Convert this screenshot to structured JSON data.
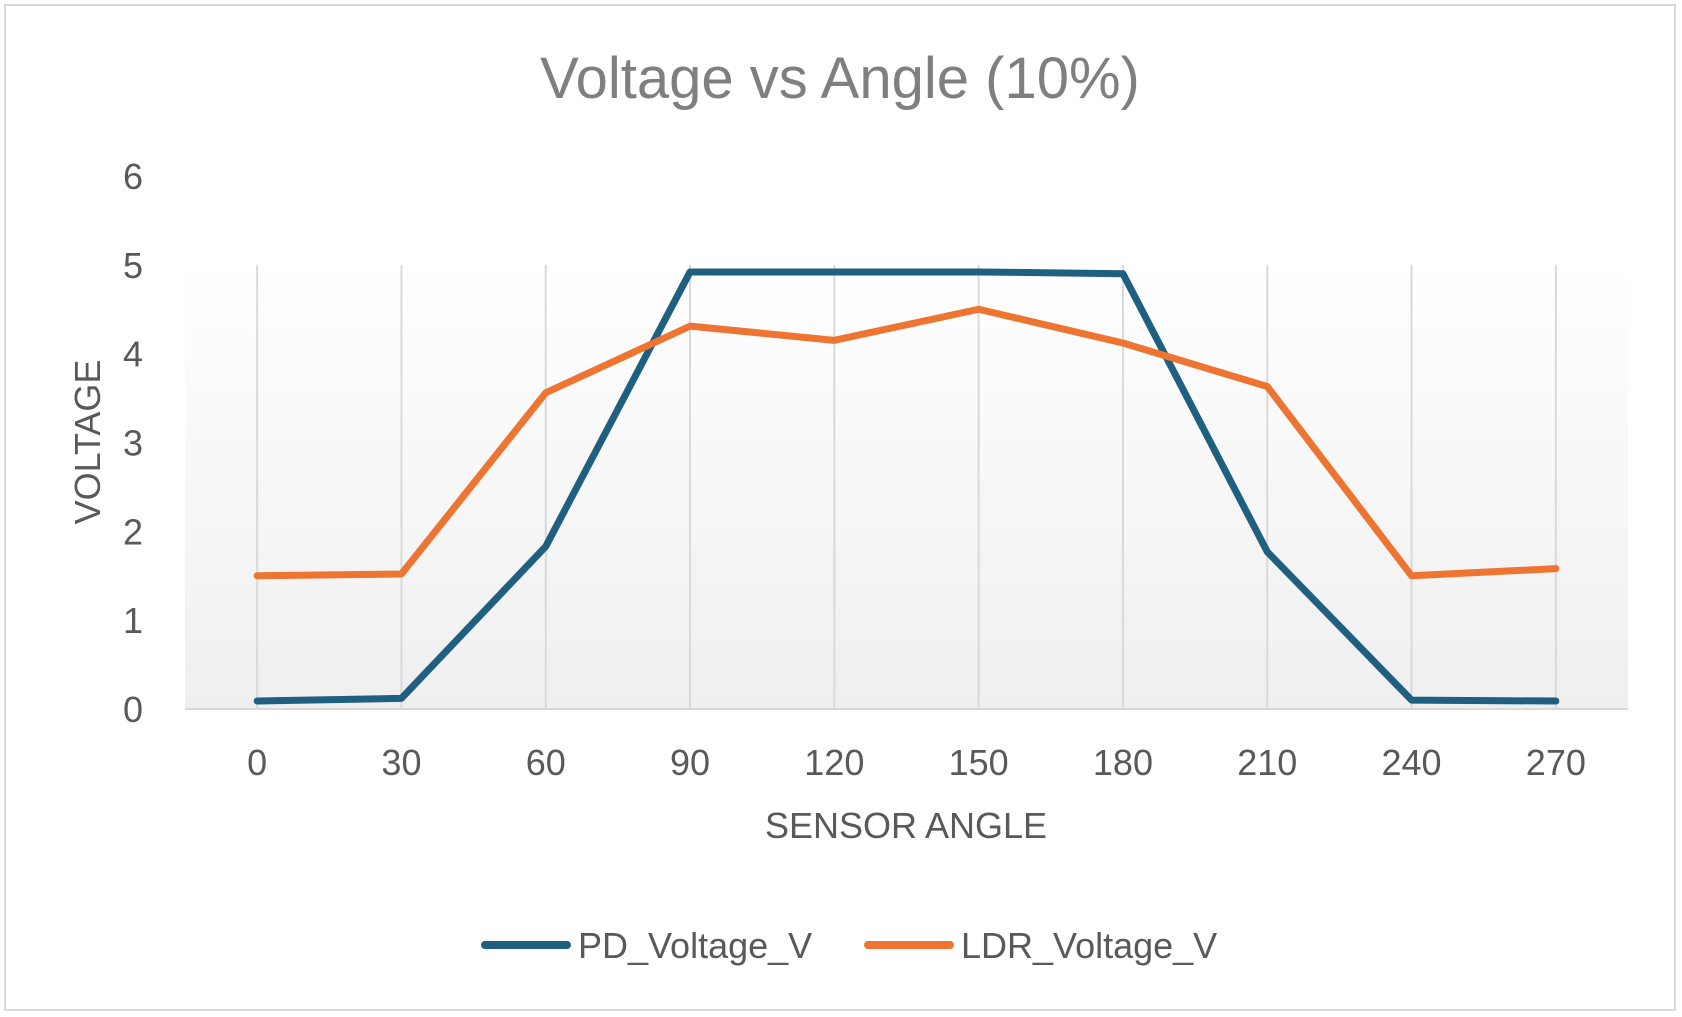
{
  "chart_data": {
    "type": "line",
    "title": "Voltage vs Angle (10%)",
    "xlabel": "SENSOR ANGLE",
    "ylabel": "VOLTAGE",
    "categories": [
      "0",
      "30",
      "60",
      "90",
      "120",
      "150",
      "180",
      "210",
      "240",
      "270"
    ],
    "series": [
      {
        "name": "PD_Voltage_V",
        "color": "#1f5f7f",
        "values": [
          0.09,
          0.12,
          1.83,
          4.92,
          4.92,
          4.92,
          4.9,
          1.77,
          0.1,
          0.09
        ]
      },
      {
        "name": "LDR_Voltage_V",
        "color": "#ed7431",
        "values": [
          1.5,
          1.52,
          3.56,
          4.31,
          4.15,
          4.5,
          4.12,
          3.63,
          1.5,
          1.58
        ]
      }
    ],
    "ylim": [
      0,
      6
    ],
    "yticks": [
      "0",
      "1",
      "2",
      "3",
      "4",
      "5",
      "6"
    ],
    "grid": "vertical",
    "legend": "bottom"
  }
}
